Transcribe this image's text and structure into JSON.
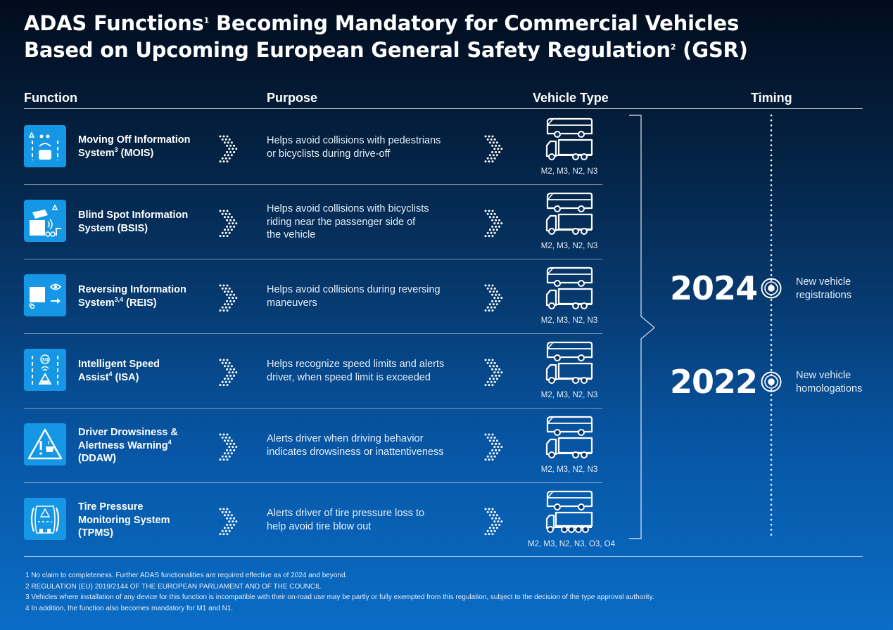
{
  "title": {
    "line1_a": "ADAS Functions",
    "line1_sup": "1",
    "line1_b": " Becoming Mandatory for Commercial Vehicles",
    "line2_a": "Based on Upcoming European General Safety Regulation",
    "line2_sup": "2",
    "line2_b": " (GSR)"
  },
  "headers": {
    "function": "Function",
    "purpose": "Purpose",
    "vehicle_type": "Vehicle Type",
    "timing": "Timing"
  },
  "rows": [
    {
      "name_a": "Moving Off Information",
      "name_b": "System",
      "sup": "3",
      "name_c": " (MOIS)",
      "purpose": [
        "Helps avoid collisions with pedestrians",
        "or bicyclists during drive-off"
      ],
      "vehicles": "M2, M3, N2, N3",
      "icon": "mois-icon"
    },
    {
      "name_a": "Blind Spot Information",
      "name_b": "System (BSIS)",
      "sup": "",
      "name_c": "",
      "purpose": [
        "Helps avoid collisions with bicyclists",
        "riding near the passenger side of",
        "the vehicle"
      ],
      "vehicles": "M2, M3, N2, N3",
      "icon": "bsis-icon"
    },
    {
      "name_a": "Reversing Information",
      "name_b": "System",
      "sup": "3,4",
      "name_c": " (REIS)",
      "purpose": [
        "Helps avoid collisions during reversing",
        "maneuvers"
      ],
      "vehicles": "M2, M3, N2, N3",
      "icon": "reis-icon"
    },
    {
      "name_a": "Intelligent Speed",
      "name_b": "Assist",
      "sup": "4",
      "name_c": " (ISA)",
      "purpose": [
        "Helps recognize speed limits and alerts",
        "driver, when speed limit is exceeded"
      ],
      "vehicles": "M2, M3, N2, N3",
      "icon": "isa-icon",
      "icon_text": "30"
    },
    {
      "name_a": "Driver Drowsiness &",
      "name_b": "Alertness Warning",
      "sup": "4",
      "name_c": "",
      "name_d": "(DDAW)",
      "purpose": [
        "Alerts driver when driving behavior",
        "indicates drowsiness or inattentiveness"
      ],
      "vehicles": "M2, M3, N2, N3",
      "icon": "ddaw-icon"
    },
    {
      "name_a": "Tire Pressure",
      "name_b": "Monitoring System",
      "sup": "",
      "name_c": "",
      "name_d": "(TPMS)",
      "purpose": [
        "Alerts driver of tire pressure loss to",
        "help avoid tire blow out"
      ],
      "vehicles": "M2, M3, N2, N3, O3, O4",
      "icon": "tpms-icon"
    }
  ],
  "timing": [
    {
      "year": "2024",
      "note": [
        "New vehicle",
        "registrations"
      ]
    },
    {
      "year": "2022",
      "note": [
        "New vehicle",
        "homologations"
      ]
    }
  ],
  "footnotes": [
    "1 No claim to completeness. Further ADAS functionalities are required effective as of 2024 and beyond.",
    "2 REGULATION (EU) 2019/2144 OF THE EUROPEAN PARLIAMENT AND OF THE COUNCIL",
    "3 Vehicles where installation of any device for this function is incompatible with their on-road use may be partly or fully exempted from this regulation, subject to the decision of the type approval authority.",
    "4 In addition, the function also becomes mandatory for M1 and N1."
  ]
}
